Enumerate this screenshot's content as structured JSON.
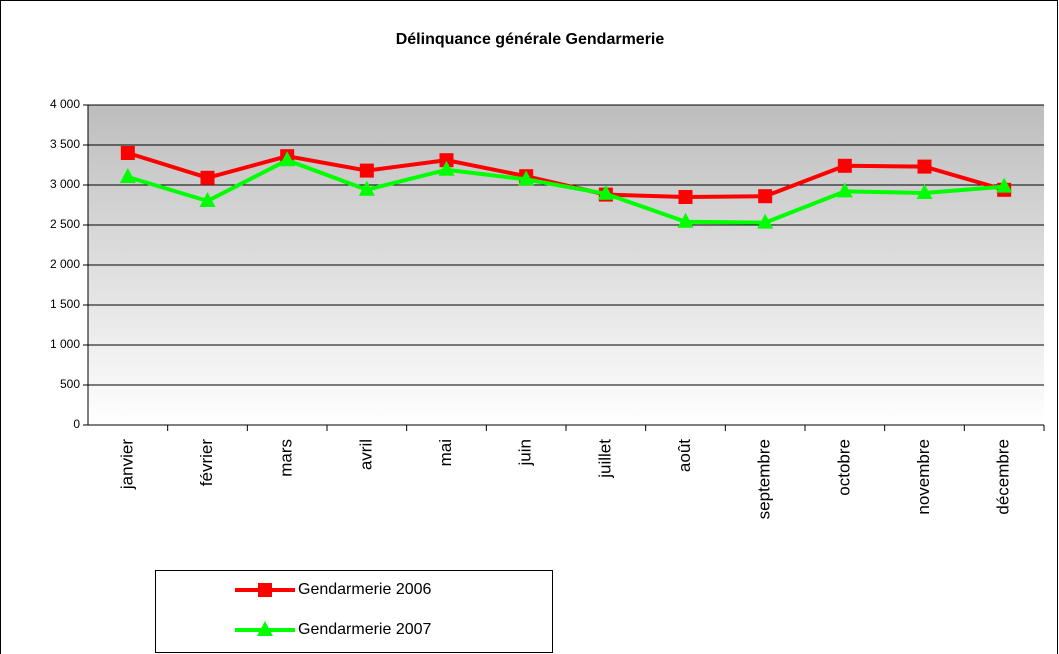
{
  "chart_data": {
    "type": "line",
    "title": "Délinquance générale Gendarmerie",
    "categories": [
      "janvier",
      "février",
      "mars",
      "avril",
      "mai",
      "juin",
      "juillet",
      "août",
      "septembre",
      "octobre",
      "novembre",
      "décembre"
    ],
    "series": [
      {
        "name": "Gendarmerie 2006",
        "color": "#ff0000",
        "marker": "square",
        "values": [
          3400,
          3090,
          3360,
          3180,
          3310,
          3110,
          2880,
          2850,
          2860,
          3240,
          3230,
          2940
        ]
      },
      {
        "name": "Gendarmerie 2007",
        "color": "#00ff00",
        "marker": "triangle",
        "values": [
          3100,
          2800,
          3310,
          2940,
          3190,
          3070,
          2890,
          2540,
          2530,
          2920,
          2900,
          2980
        ]
      }
    ],
    "ylim": [
      0,
      4000
    ],
    "yticks": [
      0,
      500,
      {
        "value": 1000,
        "label": "1 000"
      },
      {
        "value": 1500,
        "label": "1 500"
      },
      {
        "value": 2000,
        "label": "2 000"
      },
      {
        "value": 2500,
        "label": "2 500"
      },
      {
        "value": 3000,
        "label": "3 000"
      },
      {
        "value": 3500,
        "label": "3 500"
      },
      {
        "value": 4000,
        "label": "4 000"
      }
    ],
    "grid": true,
    "legend": "bottom"
  }
}
